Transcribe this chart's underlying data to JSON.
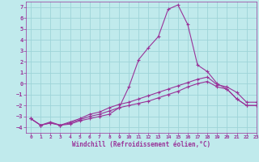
{
  "title": "",
  "xlabel": "Windchill (Refroidissement éolien,°C)",
  "ylabel": "",
  "bg_color": "#c0eaec",
  "grid_color": "#9ed4d8",
  "line_color": "#993399",
  "xlim": [
    -0.5,
    23
  ],
  "ylim": [
    -4.5,
    7.5
  ],
  "xticks": [
    0,
    1,
    2,
    3,
    4,
    5,
    6,
    7,
    8,
    9,
    10,
    11,
    12,
    13,
    14,
    15,
    16,
    17,
    18,
    19,
    20,
    21,
    22,
    23
  ],
  "yticks": [
    -4,
    -3,
    -2,
    -1,
    0,
    1,
    2,
    3,
    4,
    5,
    6,
    7
  ],
  "line1_x": [
    0,
    1,
    2,
    3,
    4,
    5,
    6,
    7,
    8,
    9,
    10,
    11,
    12,
    13,
    14,
    15,
    16,
    17,
    18,
    19,
    20,
    21,
    22,
    23
  ],
  "line1_y": [
    -3.2,
    -3.8,
    -3.6,
    -3.8,
    -3.7,
    -3.4,
    -3.2,
    -3.0,
    -2.8,
    -2.2,
    -0.3,
    2.2,
    3.3,
    4.3,
    6.8,
    7.2,
    5.4,
    1.7,
    1.1,
    0.0,
    -0.5,
    -1.4,
    -2.0,
    -2.0
  ],
  "line2_x": [
    0,
    1,
    2,
    3,
    4,
    5,
    6,
    7,
    8,
    9,
    10,
    11,
    12,
    13,
    14,
    15,
    16,
    17,
    18,
    19,
    20,
    21,
    22,
    23
  ],
  "line2_y": [
    -3.2,
    -3.8,
    -3.6,
    -3.8,
    -3.6,
    -3.3,
    -3.0,
    -2.8,
    -2.5,
    -2.2,
    -2.0,
    -1.8,
    -1.6,
    -1.3,
    -1.0,
    -0.7,
    -0.3,
    0.0,
    0.2,
    -0.3,
    -0.5,
    -1.4,
    -2.0,
    -2.0
  ],
  "line3_x": [
    0,
    1,
    2,
    3,
    4,
    5,
    6,
    7,
    8,
    9,
    10,
    11,
    12,
    13,
    14,
    15,
    16,
    17,
    18,
    19,
    20,
    21,
    22,
    23
  ],
  "line3_y": [
    -3.2,
    -3.8,
    -3.5,
    -3.8,
    -3.5,
    -3.2,
    -2.8,
    -2.6,
    -2.2,
    -1.9,
    -1.7,
    -1.4,
    -1.1,
    -0.8,
    -0.5,
    -0.2,
    0.1,
    0.4,
    0.6,
    -0.1,
    -0.3,
    -0.8,
    -1.7,
    -1.7
  ]
}
